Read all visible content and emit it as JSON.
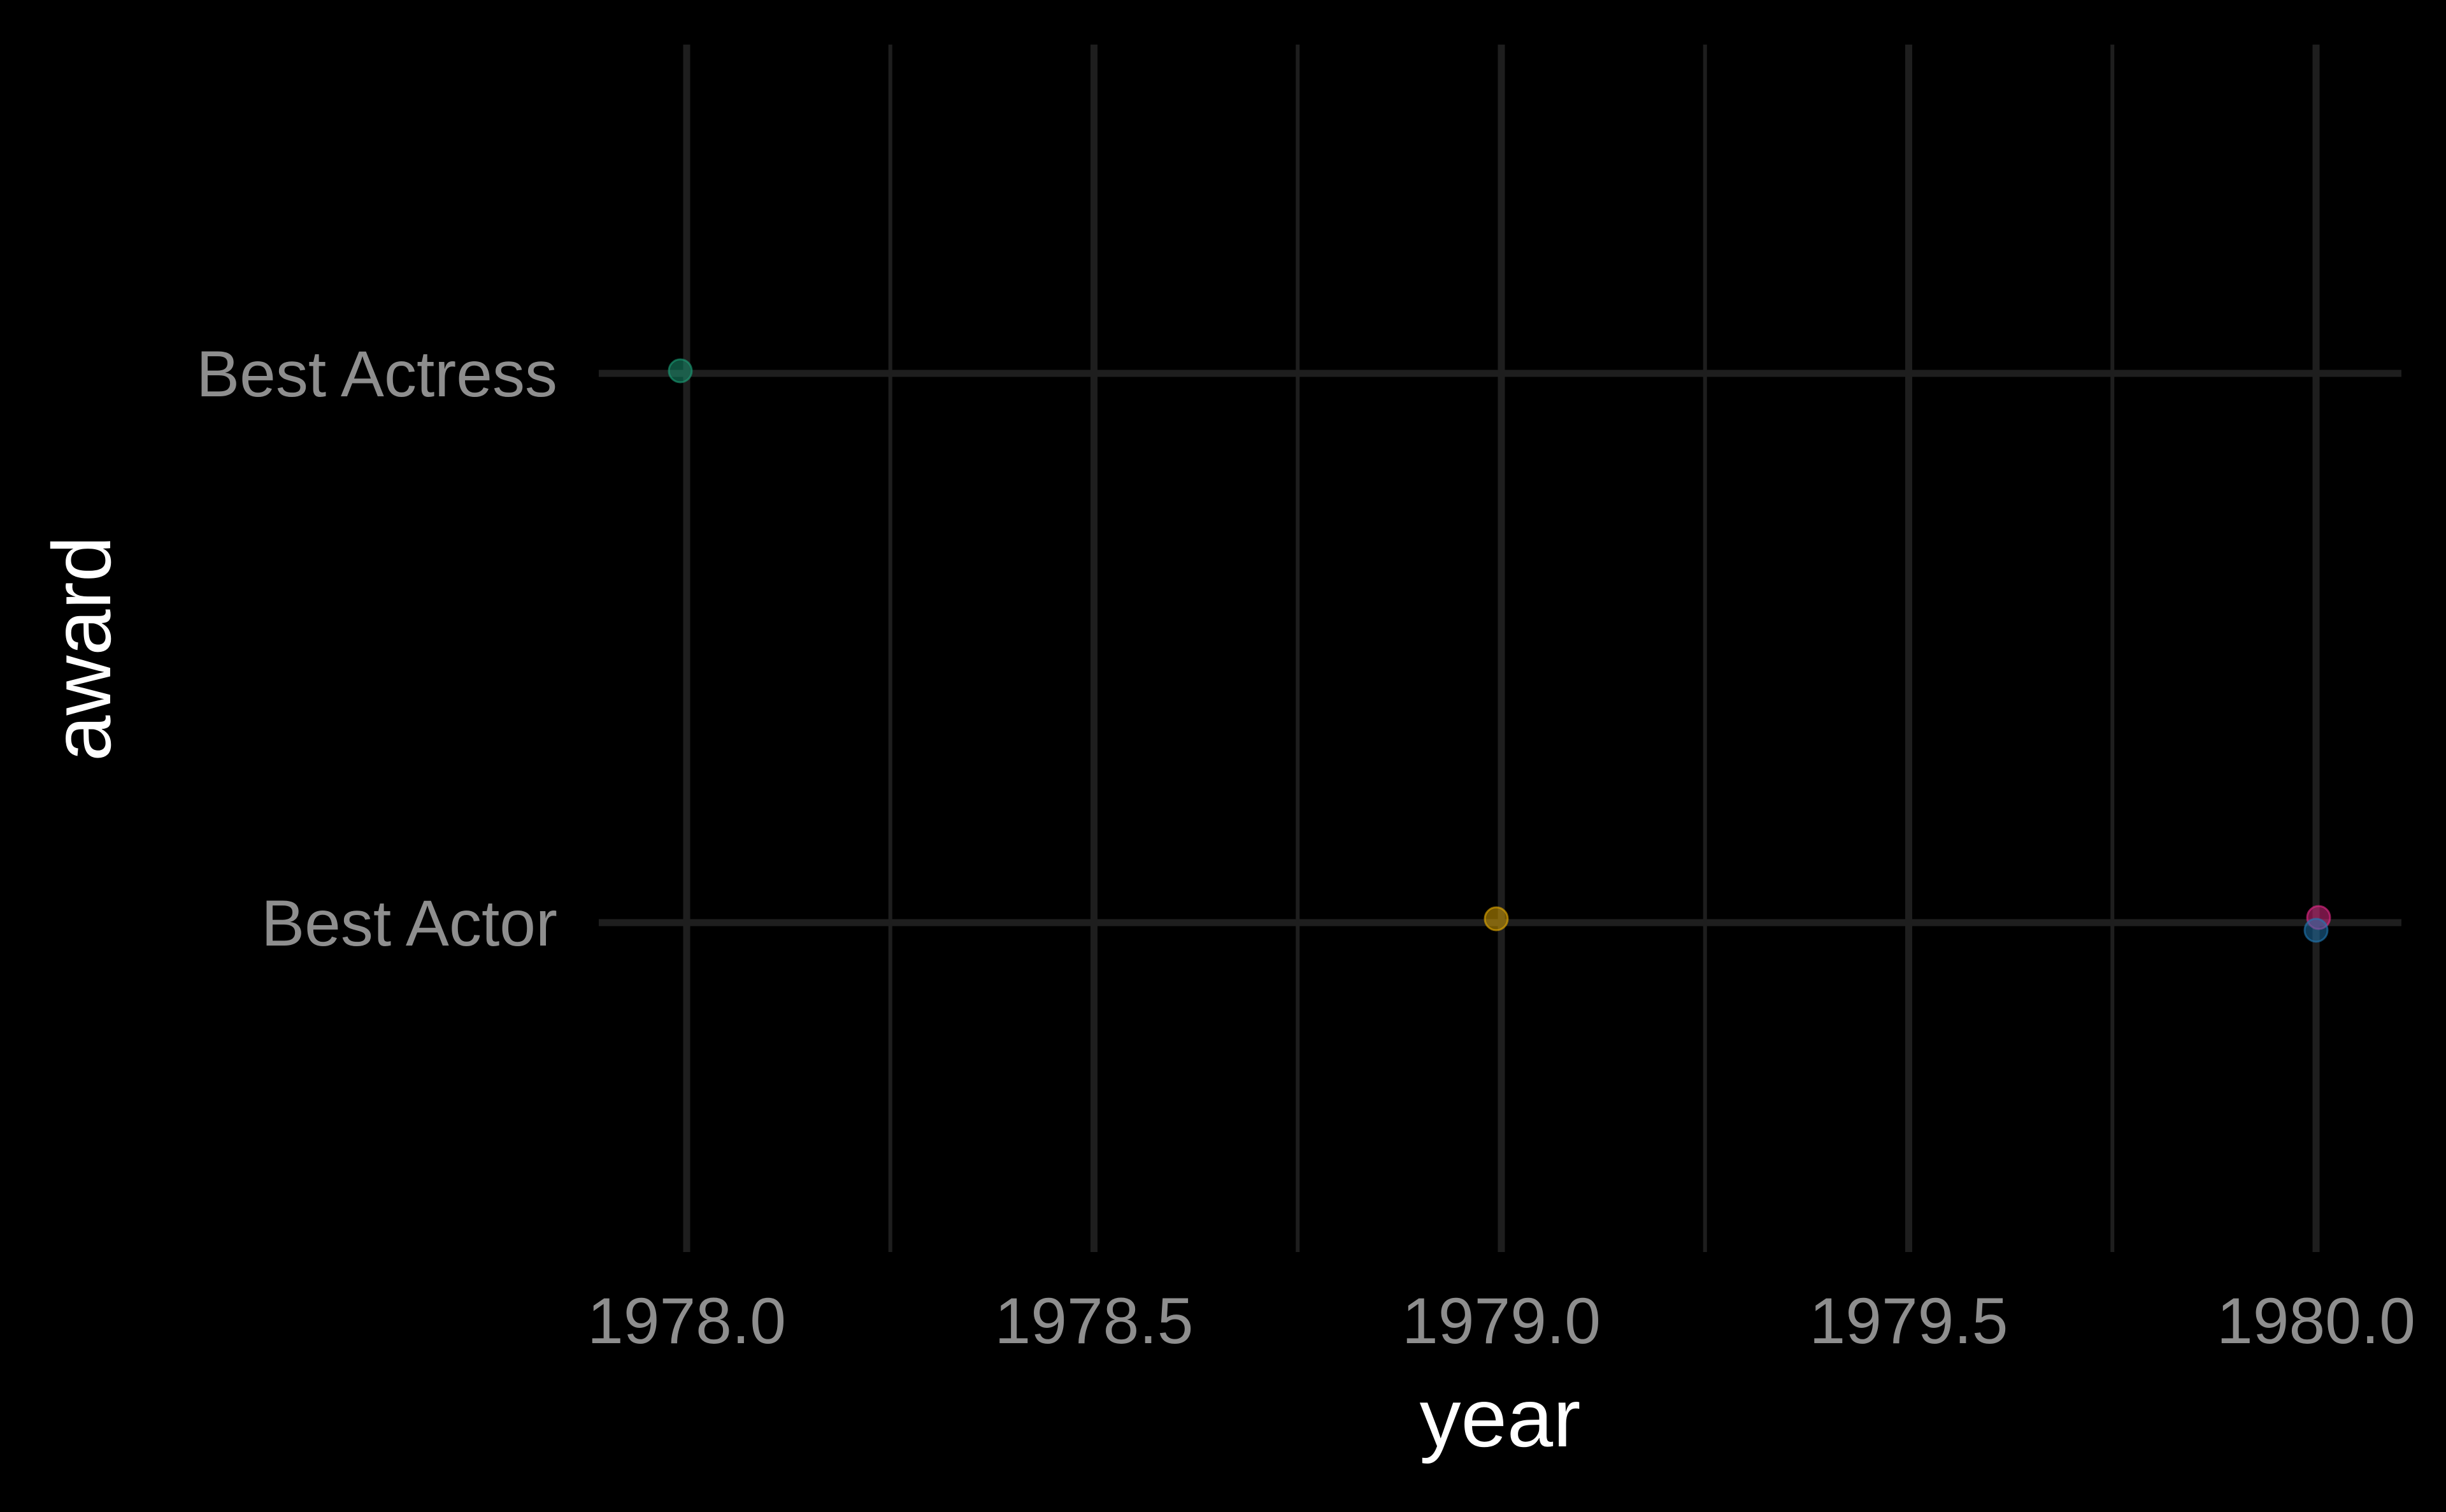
{
  "chart_data": {
    "type": "scatter",
    "title": "",
    "xlabel": "year",
    "ylabel": "award",
    "xlim": [
      1977.8,
      1980.2
    ],
    "x_ticks": [
      "1978.0",
      "1978.5",
      "1979.0",
      "1979.5",
      "1980.0"
    ],
    "categories": [
      "Best Actress",
      "Best Actor"
    ],
    "grid": true,
    "background": "#000000",
    "points": [
      {
        "x": 1978.0,
        "y": "Best Actress",
        "color": "#1a9e77"
      },
      {
        "x": 1979.0,
        "y": "Best Actor",
        "color": "#e6ab02"
      },
      {
        "x": 1980.0,
        "y": "Best Actor",
        "color": "#e7298a"
      },
      {
        "x": 1980.0,
        "y": "Best Actor",
        "color": "#1f78b4"
      }
    ]
  }
}
